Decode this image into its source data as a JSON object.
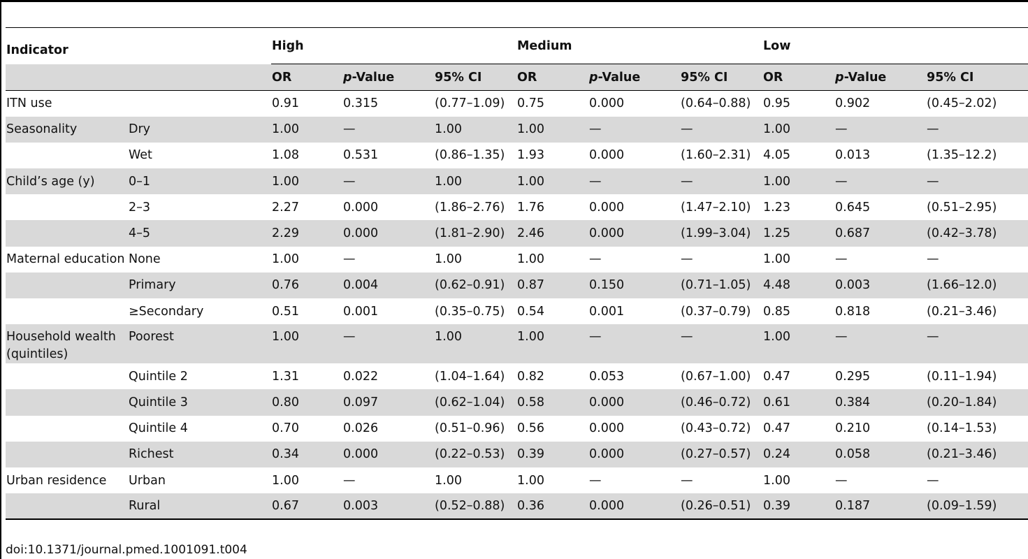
{
  "table": {
    "indicator_header": "Indicator",
    "groups": [
      "High",
      "Medium",
      "Low"
    ],
    "subheaders": {
      "or": "OR",
      "p_italic": "p",
      "p_rest": "-Value",
      "ci": "95% CI"
    },
    "rows": [
      {
        "indicator": "ITN use",
        "category": "",
        "values": [
          "0.91",
          "0.315",
          "(0.77–1.09)",
          "0.75",
          "0.000",
          "(0.64–0.88)",
          "0.95",
          "0.902",
          "(0.45–2.02)"
        ],
        "shaded": false
      },
      {
        "indicator": "Seasonality",
        "category": "Dry",
        "values": [
          "1.00",
          "—",
          "1.00",
          "1.00",
          "—",
          "—",
          "1.00",
          "—",
          "—"
        ],
        "shaded": true
      },
      {
        "indicator": "",
        "category": "Wet",
        "values": [
          "1.08",
          "0.531",
          "(0.86–1.35)",
          "1.93",
          "0.000",
          "(1.60–2.31)",
          "4.05",
          "0.013",
          "(1.35–12.2)"
        ],
        "shaded": false
      },
      {
        "indicator": "Child’s age (y)",
        "category": "0–1",
        "values": [
          "1.00",
          "—",
          "1.00",
          "1.00",
          "—",
          "—",
          "1.00",
          "—",
          "—"
        ],
        "shaded": true
      },
      {
        "indicator": "",
        "category": "2–3",
        "values": [
          "2.27",
          "0.000",
          "(1.86–2.76)",
          "1.76",
          "0.000",
          "(1.47–2.10)",
          "1.23",
          "0.645",
          "(0.51–2.95)"
        ],
        "shaded": false
      },
      {
        "indicator": "",
        "category": "4–5",
        "values": [
          "2.29",
          "0.000",
          "(1.81–2.90)",
          "2.46",
          "0.000",
          "(1.99–3.04)",
          "1.25",
          "0.687",
          "(0.42–3.78)"
        ],
        "shaded": true
      },
      {
        "indicator": "Maternal education",
        "category": "None",
        "values": [
          "1.00",
          "—",
          "1.00",
          "1.00",
          "—",
          "—",
          "1.00",
          "—",
          "—"
        ],
        "shaded": false
      },
      {
        "indicator": "",
        "category": "Primary",
        "values": [
          "0.76",
          "0.004",
          "(0.62–0.91)",
          "0.87",
          "0.150",
          "(0.71–1.05)",
          "4.48",
          "0.003",
          "(1.66–12.0)"
        ],
        "shaded": true
      },
      {
        "indicator": "",
        "category": "≥Secondary",
        "values": [
          "0.51",
          "0.001",
          "(0.35–0.75)",
          "0.54",
          "0.001",
          "(0.37–0.79)",
          "0.85",
          "0.818",
          "(0.21–3.46)"
        ],
        "shaded": false
      },
      {
        "indicator": "Household wealth (quintiles)",
        "category": "Poorest",
        "values": [
          "1.00",
          "—",
          "1.00",
          "1.00",
          "—",
          "—",
          "1.00",
          "—",
          "—"
        ],
        "shaded": true
      },
      {
        "indicator": "",
        "category": "Quintile 2",
        "values": [
          "1.31",
          "0.022",
          "(1.04–1.64)",
          "0.82",
          "0.053",
          "(0.67–1.00)",
          "0.47",
          "0.295",
          "(0.11–1.94)"
        ],
        "shaded": false
      },
      {
        "indicator": "",
        "category": "Quintile 3",
        "values": [
          "0.80",
          "0.097",
          "(0.62–1.04)",
          "0.58",
          "0.000",
          "(0.46–0.72)",
          "0.61",
          "0.384",
          "(0.20–1.84)"
        ],
        "shaded": true
      },
      {
        "indicator": "",
        "category": "Quintile 4",
        "values": [
          "0.70",
          "0.026",
          "(0.51–0.96)",
          "0.56",
          "0.000",
          "(0.43–0.72)",
          "0.47",
          "0.210",
          "(0.14–1.53)"
        ],
        "shaded": false
      },
      {
        "indicator": "",
        "category": "Richest",
        "values": [
          "0.34",
          "0.000",
          "(0.22–0.53)",
          "0.39",
          "0.000",
          "(0.27–0.57)",
          "0.24",
          "0.058",
          "(0.21–3.46)"
        ],
        "shaded": true
      },
      {
        "indicator": "Urban residence",
        "category": "Urban",
        "values": [
          "1.00",
          "—",
          "1.00",
          "1.00",
          "—",
          "—",
          "1.00",
          "—",
          "—"
        ],
        "shaded": false
      },
      {
        "indicator": "",
        "category": "Rural",
        "values": [
          "0.67",
          "0.003",
          "(0.52–0.88)",
          "0.36",
          "0.000",
          "(0.26–0.51)",
          "0.39",
          "0.187",
          "(0.09–1.59)"
        ],
        "shaded": true
      }
    ]
  },
  "footer": {
    "doi": "doi:10.1371/journal.pmed.1001091.t004"
  },
  "colors": {
    "shade": "#d9d9d9",
    "rule": "#000000"
  }
}
